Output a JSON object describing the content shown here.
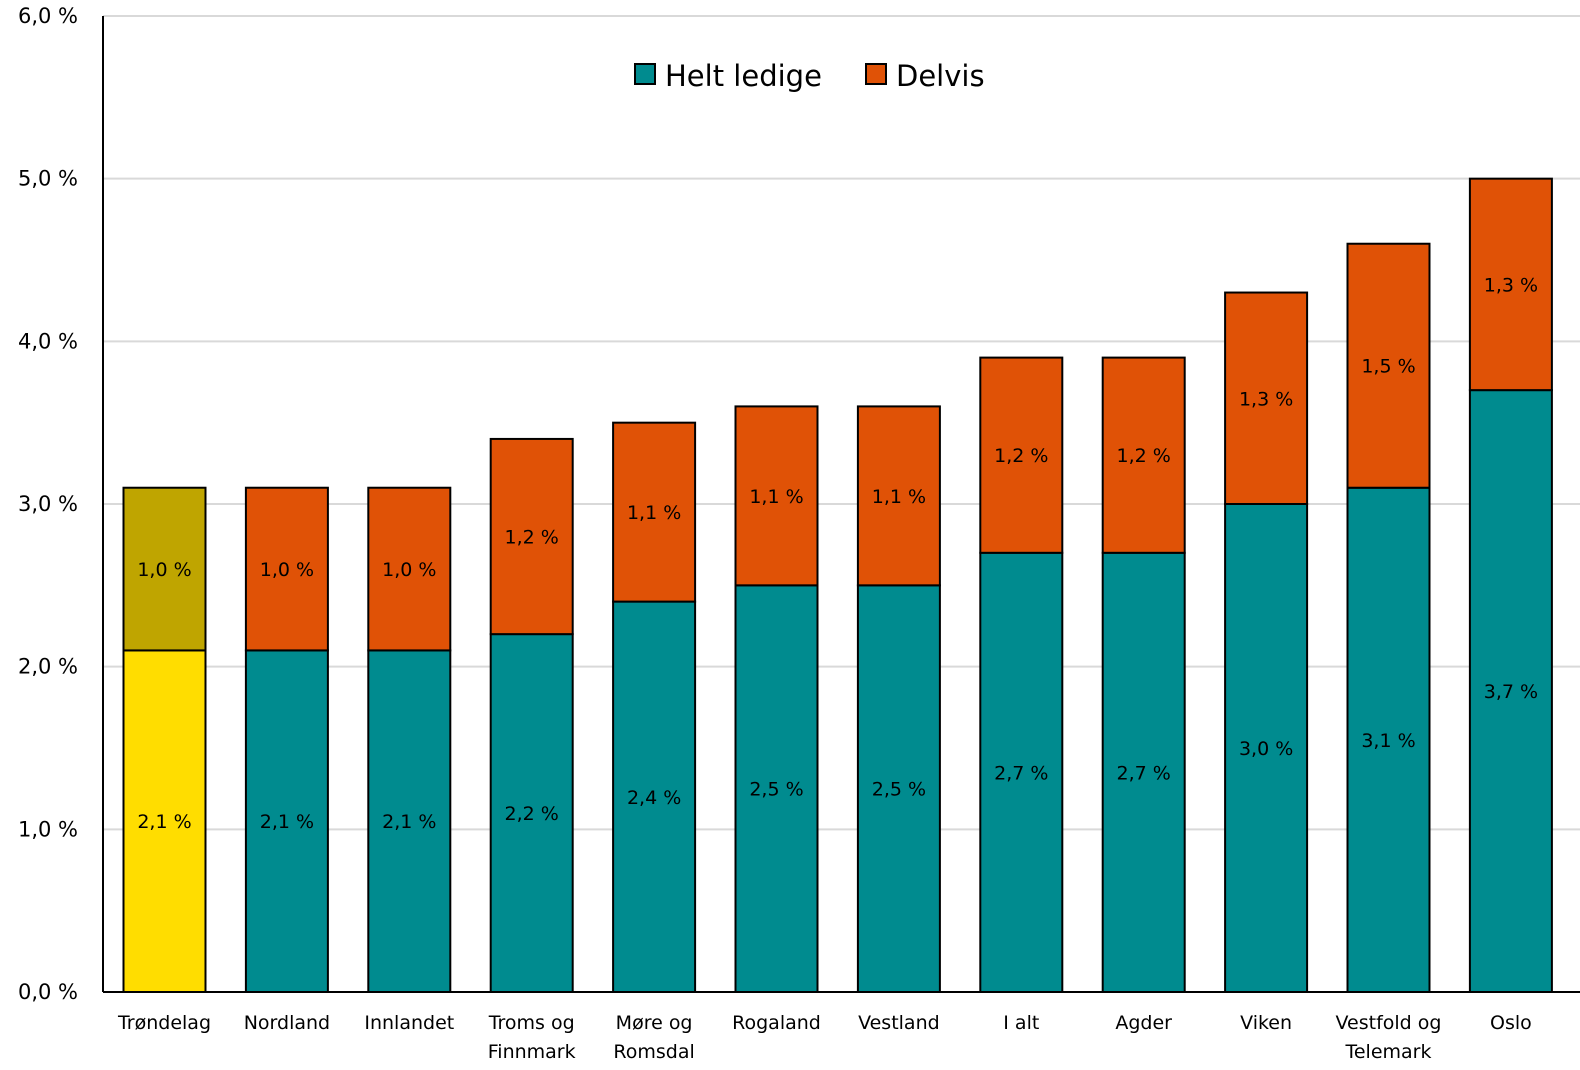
{
  "chart_data": {
    "type": "bar",
    "stacked": true,
    "title": "",
    "xlabel": "",
    "ylabel": "",
    "ylim": [
      0,
      6.0
    ],
    "yticks": [
      "0,0 %",
      "1,0 %",
      "2,0 %",
      "3,0 %",
      "4,0 %",
      "5,0 %",
      "6,0 %"
    ],
    "grid": true,
    "legend_position": "top",
    "categories": [
      [
        "Trøndelag"
      ],
      [
        "Nordland"
      ],
      [
        "Innlandet"
      ],
      [
        "Troms og",
        "Finnmark"
      ],
      [
        "Møre og",
        "Romsdal"
      ],
      [
        "Rogaland"
      ],
      [
        "Vestland"
      ],
      [
        "I alt"
      ],
      [
        "Agder"
      ],
      [
        "Viken"
      ],
      [
        "Vestfold og",
        "Telemark"
      ],
      [
        "Oslo"
      ]
    ],
    "series": [
      {
        "name": "Helt ledige",
        "color": "#008B8F",
        "values": [
          2.1,
          2.1,
          2.1,
          2.2,
          2.4,
          2.5,
          2.5,
          2.7,
          2.7,
          3.0,
          3.1,
          3.7
        ],
        "labels": [
          "2,1 %",
          "2,1 %",
          "2,1 %",
          "2,2 %",
          "2,4 %",
          "2,5 %",
          "2,5 %",
          "2,7 %",
          "2,7 %",
          "3,0 %",
          "3,1 %",
          "3,7 %"
        ]
      },
      {
        "name": "Delvis",
        "color": "#E05206",
        "values": [
          1.0,
          1.0,
          1.0,
          1.2,
          1.1,
          1.1,
          1.1,
          1.2,
          1.2,
          1.3,
          1.5,
          1.3
        ],
        "labels": [
          "1,0 %",
          "1,0 %",
          "1,0 %",
          "1,2 %",
          "1,1 %",
          "1,1 %",
          "1,1 %",
          "1,2 %",
          "1,2 %",
          "1,3 %",
          "1,5 %",
          "1,3 %"
        ]
      }
    ],
    "highlight": {
      "category_index": 0,
      "colors": [
        "#FFDD00",
        "#BFA500"
      ]
    },
    "colors": {
      "gridline": "#D9D9D9",
      "axis": "#000000",
      "bar_outline": "#000000"
    }
  }
}
